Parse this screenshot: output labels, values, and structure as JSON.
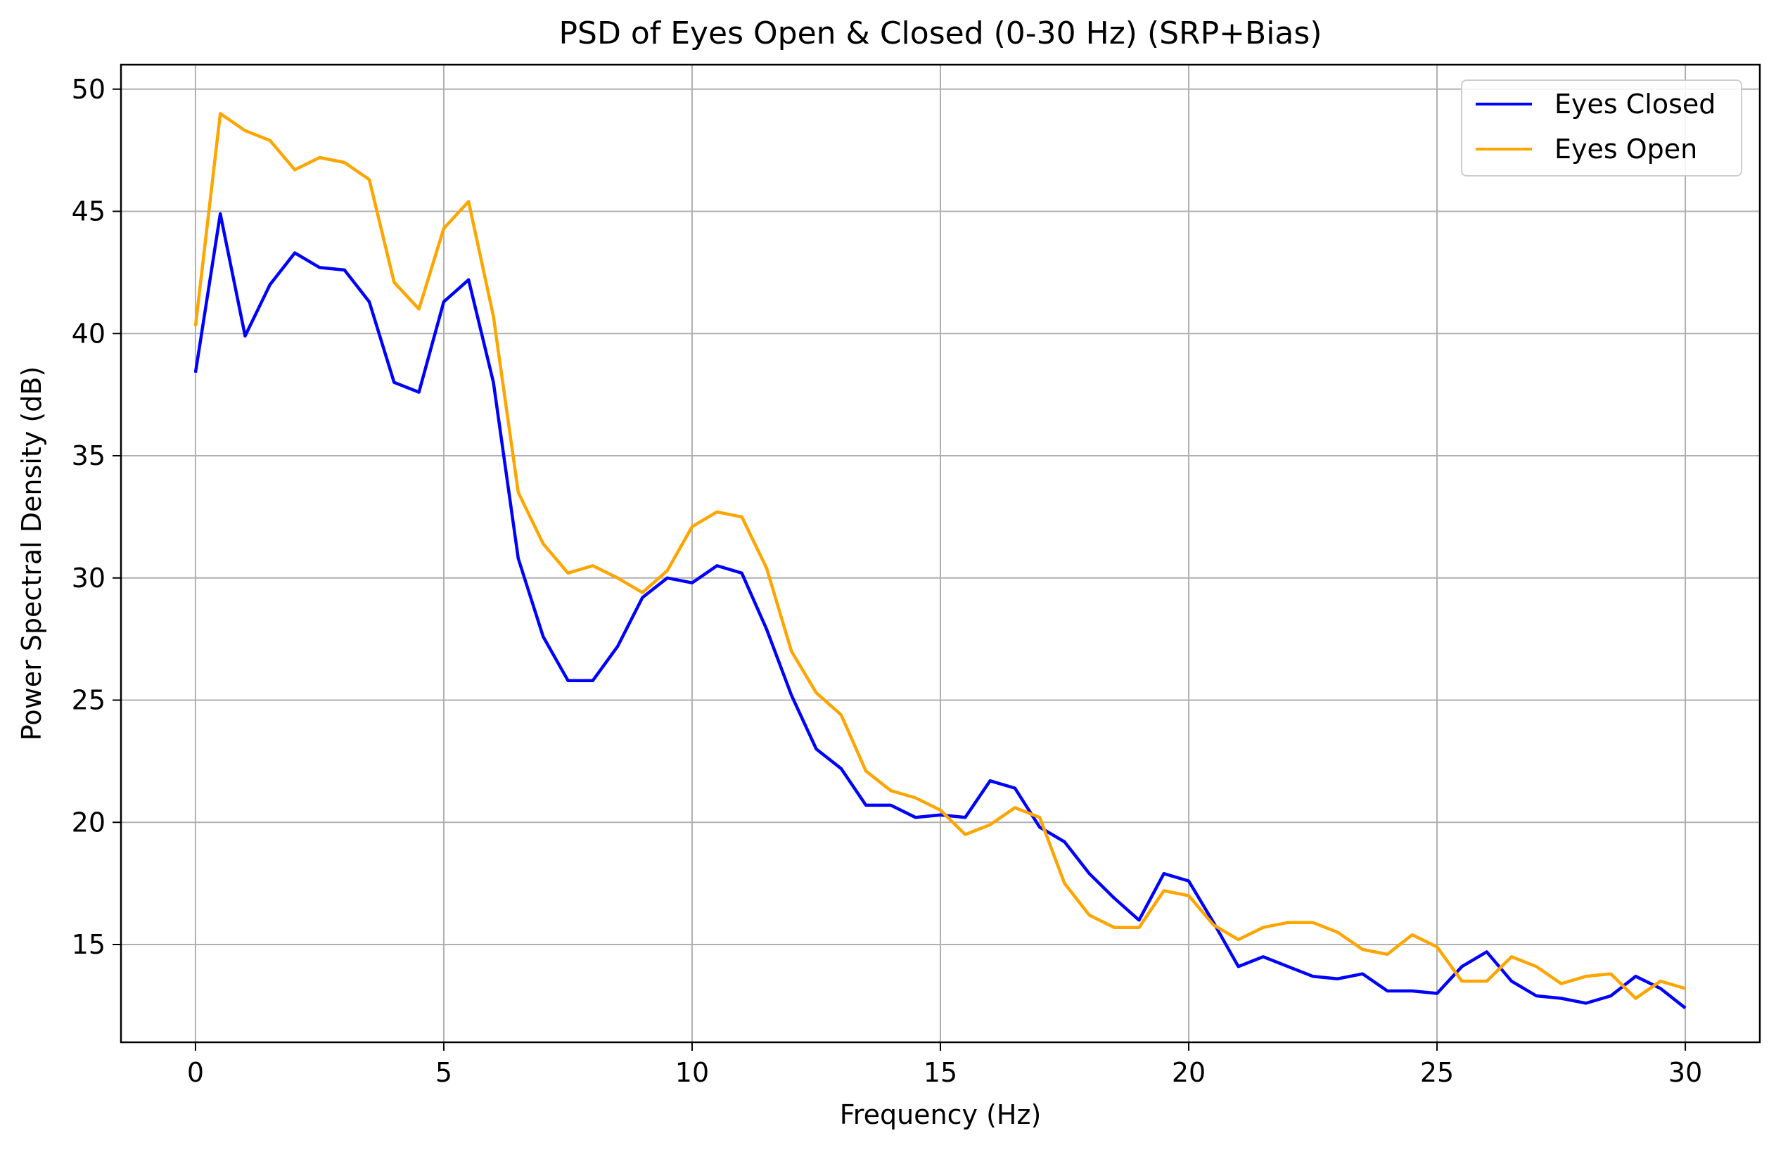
{
  "chart_data": {
    "type": "line",
    "title": "PSD of Eyes Open & Closed (0-30 Hz) (SRP+Bias)",
    "xlabel": "Frequency (Hz)",
    "ylabel": "Power Spectral Density (dB)",
    "xlim": [
      -1.5,
      31.5
    ],
    "ylim": [
      11,
      51
    ],
    "xticks": [
      0,
      5,
      10,
      15,
      20,
      25,
      30
    ],
    "yticks": [
      15,
      20,
      25,
      30,
      35,
      40,
      45,
      50
    ],
    "grid": true,
    "legend_position": "top-right",
    "x": [
      0,
      0.5,
      1,
      1.5,
      2,
      2.5,
      3,
      3.5,
      4,
      4.5,
      5,
      5.5,
      6,
      6.5,
      7,
      7.5,
      8,
      8.5,
      9,
      9.5,
      10,
      10.5,
      11,
      11.5,
      12,
      12.5,
      13,
      13.5,
      14,
      14.5,
      15,
      15.5,
      16,
      16.5,
      17,
      17.5,
      18,
      18.5,
      19,
      19.5,
      20,
      20.5,
      21,
      21.5,
      22,
      22.5,
      23,
      23.5,
      24,
      24.5,
      25,
      25.5,
      26,
      26.5,
      27,
      27.5,
      28,
      28.5,
      29,
      29.5,
      30
    ],
    "series": [
      {
        "name": "Eyes Closed",
        "color": "#0000ff",
        "values": [
          38.4,
          44.9,
          39.9,
          42.0,
          43.3,
          42.7,
          42.6,
          41.3,
          38.0,
          37.6,
          41.3,
          42.2,
          38.0,
          30.8,
          27.6,
          25.8,
          25.8,
          27.2,
          29.2,
          30.0,
          29.8,
          30.5,
          30.2,
          27.9,
          25.2,
          23.0,
          22.2,
          20.7,
          20.7,
          20.2,
          20.3,
          20.2,
          21.7,
          21.4,
          19.8,
          19.2,
          17.9,
          16.9,
          16.0,
          17.9,
          17.6,
          15.9,
          14.1,
          14.5,
          14.1,
          13.7,
          13.6,
          13.8,
          13.1,
          13.1,
          13.0,
          14.1,
          14.7,
          13.5,
          12.9,
          12.8,
          12.6,
          12.9,
          13.7,
          13.2,
          12.4
        ]
      },
      {
        "name": "Eyes Open",
        "color": "#ffa500",
        "values": [
          40.3,
          49.0,
          48.3,
          47.9,
          46.7,
          47.2,
          47.0,
          46.3,
          42.1,
          41.0,
          44.3,
          45.4,
          40.7,
          33.5,
          31.4,
          30.2,
          30.5,
          30.0,
          29.4,
          30.3,
          32.1,
          32.7,
          32.5,
          30.4,
          27.0,
          25.3,
          24.4,
          22.1,
          21.3,
          21.0,
          20.5,
          19.5,
          19.9,
          20.6,
          20.2,
          17.5,
          16.2,
          15.7,
          15.7,
          17.2,
          17.0,
          15.8,
          15.2,
          15.7,
          15.9,
          15.9,
          15.5,
          14.8,
          14.6,
          15.4,
          14.9,
          13.5,
          13.5,
          14.5,
          14.1,
          13.4,
          13.7,
          13.8,
          12.8,
          13.5,
          13.2
        ]
      }
    ]
  }
}
